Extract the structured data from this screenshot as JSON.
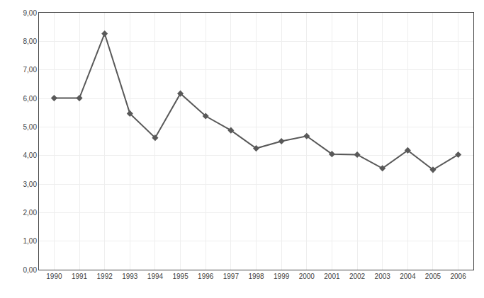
{
  "chart_data": {
    "type": "line",
    "x": [
      1990,
      1991,
      1992,
      1993,
      1994,
      1995,
      1996,
      1997,
      1998,
      1999,
      2000,
      2001,
      2002,
      2003,
      2004,
      2005,
      2006
    ],
    "values": [
      6.01,
      6.01,
      8.27,
      5.47,
      4.62,
      6.17,
      5.38,
      4.88,
      4.25,
      4.5,
      4.68,
      4.05,
      4.03,
      3.55,
      4.18,
      3.5,
      4.03
    ],
    "color": "#595959",
    "marker": "diamond",
    "xlim": [
      1989.4,
      2006.6
    ],
    "xticks": [
      1990,
      1991,
      1992,
      1993,
      1994,
      1995,
      1996,
      1997,
      1998,
      1999,
      2000,
      2001,
      2002,
      2003,
      2004,
      2005,
      2006
    ],
    "ylim": [
      0.0,
      9.0
    ],
    "yticks": [
      {
        "value": 0.0,
        "label": "0,00"
      },
      {
        "value": 1.0,
        "label": "1,00"
      },
      {
        "value": 2.0,
        "label": "2,00"
      },
      {
        "value": 3.0,
        "label": "3,00"
      },
      {
        "value": 4.0,
        "label": "4,00"
      },
      {
        "value": 5.0,
        "label": "5,00"
      },
      {
        "value": 6.0,
        "label": "6,00"
      },
      {
        "value": 7.0,
        "label": "7,00"
      },
      {
        "value": 8.0,
        "label": "8,00"
      },
      {
        "value": 9.0,
        "label": "9,00"
      }
    ],
    "grid": true
  }
}
